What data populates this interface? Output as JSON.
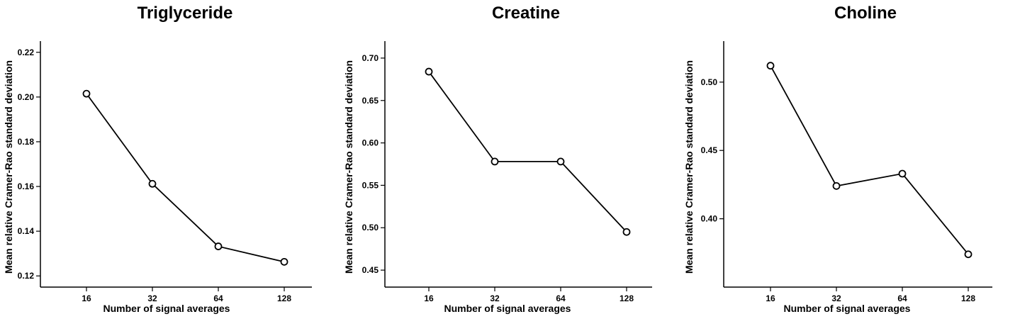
{
  "chart_data": [
    {
      "type": "line",
      "title": "Triglyceride",
      "xlabel": "Number of signal averages",
      "ylabel": "Mean relative Cramer-Rao standard deviation",
      "categories": [
        "16",
        "32",
        "64",
        "128"
      ],
      "values": [
        0.2015,
        0.1612,
        0.1332,
        0.1263
      ],
      "yticks": [
        0.12,
        0.14,
        0.16,
        0.18,
        0.2,
        0.22
      ],
      "ytick_labels": [
        "0.12",
        "0.14",
        "0.16",
        "0.18",
        "0.20",
        "0.22"
      ],
      "ylim": [
        0.115,
        0.225
      ],
      "grid": false
    },
    {
      "type": "line",
      "title": "Creatine",
      "xlabel": "Number of signal averages",
      "ylabel": "Mean relative Cramer-Rao standard deviation",
      "categories": [
        "16",
        "32",
        "64",
        "128"
      ],
      "values": [
        0.684,
        0.578,
        0.578,
        0.495
      ],
      "yticks": [
        0.45,
        0.5,
        0.55,
        0.6,
        0.65,
        0.7
      ],
      "ytick_labels": [
        "0.45",
        "0.50",
        "0.55",
        "0.60",
        "0.65",
        "0.70"
      ],
      "ylim": [
        0.43,
        0.72
      ],
      "grid": false
    },
    {
      "type": "line",
      "title": "Choline",
      "xlabel": "Number of signal averages",
      "ylabel": "Mean relative Cramer-Rao standard deviation",
      "categories": [
        "16",
        "32",
        "64",
        "128"
      ],
      "values": [
        0.512,
        0.424,
        0.433,
        0.374
      ],
      "yticks": [
        0.4,
        0.45,
        0.5
      ],
      "ytick_labels": [
        "0.40",
        "0.45",
        "0.50"
      ],
      "ylim": [
        0.35,
        0.53
      ],
      "grid": false
    }
  ]
}
